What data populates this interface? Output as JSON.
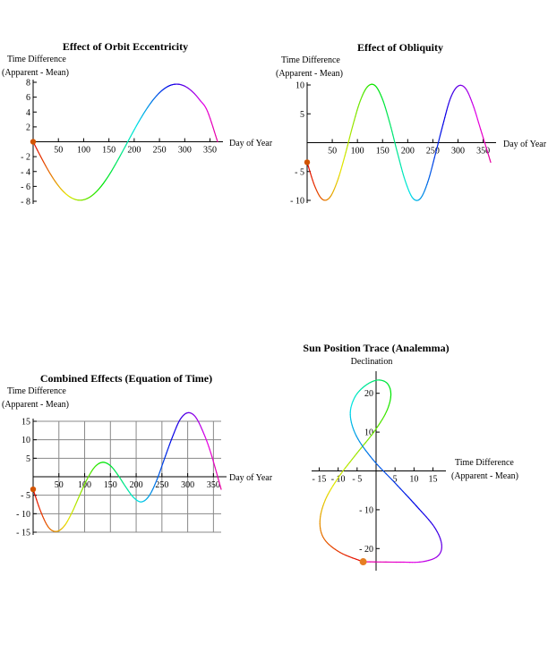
{
  "chart_data": [
    {
      "type": "line",
      "title": "Effect of Orbit Eccentricity",
      "ylabel_line1": "Time Difference",
      "ylabel_line2": "(Apparent - Mean)",
      "xlabel": "Day of Year",
      "xlim": [
        0,
        365
      ],
      "ylim": [
        -8,
        8
      ],
      "xticks": [
        50,
        100,
        150,
        200,
        250,
        300,
        350
      ],
      "yticks": [
        -8,
        -6,
        -4,
        -2,
        2,
        4,
        6,
        8
      ],
      "grid": false,
      "marker": {
        "x": 0,
        "y": 0
      },
      "series": [
        {
          "x": [
            0,
            15,
            30,
            45,
            60,
            75,
            90,
            105,
            120,
            135,
            150,
            165,
            180,
            195,
            210,
            225,
            240,
            255,
            270,
            285,
            300,
            315,
            330,
            345,
            365
          ],
          "values": [
            0,
            -1.99,
            -3.86,
            -5.46,
            -6.7,
            -7.51,
            -7.85,
            -7.69,
            -7.04,
            -5.95,
            -4.5,
            -2.78,
            -0.92,
            0.98,
            2.81,
            4.46,
            5.85,
            6.9,
            7.55,
            7.75,
            7.48,
            6.75,
            5.6,
            4.1,
            0
          ]
        }
      ]
    },
    {
      "type": "line",
      "title": "Effect of Obliquity",
      "ylabel_line1": "Time Difference",
      "ylabel_line2": "(Apparent - Mean)",
      "xlabel": "Day of Year",
      "xlim": [
        0,
        365
      ],
      "ylim": [
        -10,
        10
      ],
      "xticks": [
        50,
        100,
        150,
        200,
        250,
        300,
        350
      ],
      "yticks": [
        -10,
        -5,
        5,
        10
      ],
      "grid": false,
      "marker": {
        "x": 0,
        "y": -3.4
      },
      "series": [
        {
          "x": [
            0,
            15,
            30,
            45,
            60,
            75,
            90,
            105,
            120,
            135,
            150,
            165,
            180,
            195,
            210,
            225,
            240,
            255,
            270,
            285,
            300,
            315,
            330,
            345,
            365
          ],
          "values": [
            -3.4,
            -7.5,
            -9.8,
            -9.5,
            -6.7,
            -2.3,
            2.7,
            7.1,
            9.7,
            9.9,
            7.5,
            3.2,
            -1.9,
            -6.6,
            -9.6,
            -9.7,
            -6.8,
            -2.0,
            3.1,
            7.7,
            9.8,
            9.4,
            6.5,
            2.3,
            -3.4
          ]
        }
      ]
    },
    {
      "type": "line",
      "title": "Combined Effects (Equation of Time)",
      "ylabel_line1": "Time Difference",
      "ylabel_line2": "(Apparent - Mean)",
      "xlabel": "Day of Year",
      "xlim": [
        0,
        365
      ],
      "ylim": [
        -15,
        15
      ],
      "xticks": [
        50,
        100,
        150,
        200,
        250,
        300,
        350
      ],
      "yticks": [
        -15,
        -10,
        -5,
        5,
        10,
        15
      ],
      "grid": true,
      "marker": {
        "x": 0,
        "y": -3.4
      },
      "series": [
        {
          "x": [
            0,
            15,
            30,
            45,
            60,
            75,
            90,
            105,
            120,
            135,
            150,
            165,
            180,
            195,
            210,
            225,
            240,
            255,
            270,
            285,
            300,
            315,
            330,
            345,
            365
          ],
          "values": [
            -3.4,
            -9.5,
            -13.7,
            -14.8,
            -13.4,
            -9.8,
            -5.1,
            -0.6,
            2.7,
            3.9,
            3.0,
            0.4,
            -2.8,
            -5.6,
            -6.8,
            -5.2,
            -0.9,
            4.9,
            10.6,
            15.4,
            17.3,
            16.2,
            12.1,
            6.4,
            -3.4
          ]
        }
      ]
    },
    {
      "type": "line",
      "title": "Sun Position Trace (Analemma)",
      "ylabel": "Declination",
      "xlabel_line1": "Time Difference",
      "xlabel_line2": "(Apparent - Mean)",
      "xlim": [
        -17,
        17
      ],
      "ylim": [
        -25,
        25
      ],
      "xticks": [
        -15,
        -10,
        -5,
        5,
        10,
        15
      ],
      "yticks": [
        -20,
        -10,
        10,
        20
      ],
      "grid": false,
      "marker": {
        "x": -3.4,
        "y": -23.4
      },
      "series": [
        {
          "x": [
            -3.4,
            -9.5,
            -13.7,
            -14.8,
            -13.4,
            -9.8,
            -5.1,
            -0.6,
            2.7,
            3.9,
            3.0,
            0.4,
            -2.8,
            -5.6,
            -6.8,
            -5.2,
            -0.9,
            4.9,
            10.6,
            15.4,
            17.3,
            16.2,
            12.1,
            6.4,
            -3.4
          ],
          "values": [
            -23.4,
            -21.0,
            -17.5,
            -13.0,
            -7.5,
            -1.5,
            4.5,
            10.0,
            15.2,
            19.5,
            22.5,
            23.4,
            22.0,
            19.0,
            14.5,
            9.0,
            3.0,
            -3.0,
            -9.0,
            -14.5,
            -19.0,
            -22.0,
            -23.4,
            -23.5,
            -23.4
          ]
        }
      ]
    }
  ]
}
